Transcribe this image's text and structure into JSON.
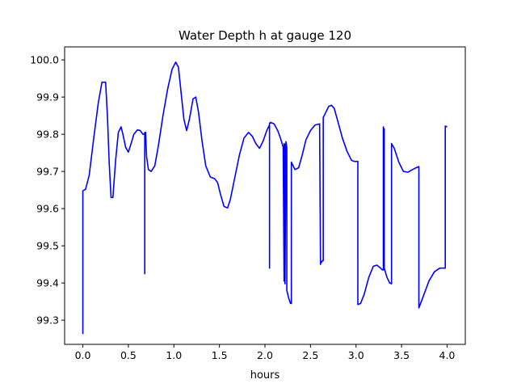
{
  "chart_data": {
    "type": "line",
    "title": "Water Depth h at gauge 120",
    "xlabel": "hours",
    "ylabel": "",
    "xlim": [
      -0.2,
      4.2
    ],
    "ylim": [
      99.235,
      100.035
    ],
    "x_ticks": [
      0.0,
      0.5,
      1.0,
      1.5,
      2.0,
      2.5,
      3.0,
      3.5,
      4.0
    ],
    "x_tick_labels": [
      "0.0",
      "0.5",
      "1.0",
      "1.5",
      "2.0",
      "2.5",
      "3.0",
      "3.5",
      "4.0"
    ],
    "y_ticks": [
      99.3,
      99.4,
      99.5,
      99.6,
      99.7,
      99.8,
      99.9,
      100.0
    ],
    "y_tick_labels": [
      "99.3",
      "99.4",
      "99.5",
      "99.6",
      "99.7",
      "99.8",
      "99.9",
      "100.0"
    ],
    "grid": false,
    "series": [
      {
        "color": "#0000ff",
        "x": [
          0.0,
          0.0,
          0.03,
          0.07,
          0.12,
          0.17,
          0.21,
          0.25,
          0.27,
          0.29,
          0.31,
          0.33,
          0.36,
          0.39,
          0.42,
          0.44,
          0.47,
          0.5,
          0.53,
          0.56,
          0.6,
          0.63,
          0.66,
          0.68,
          0.68,
          0.68,
          0.69,
          0.69,
          0.7,
          0.72,
          0.75,
          0.79,
          0.83,
          0.88,
          0.93,
          0.98,
          1.02,
          1.05,
          1.08,
          1.11,
          1.14,
          1.17,
          1.21,
          1.24,
          1.27,
          1.31,
          1.35,
          1.4,
          1.45,
          1.48,
          1.51,
          1.55,
          1.59,
          1.62,
          1.67,
          1.72,
          1.77,
          1.82,
          1.86,
          1.9,
          1.94,
          1.98,
          2.02,
          2.05,
          2.05,
          2.05,
          2.06,
          2.06,
          2.1,
          2.14,
          2.17,
          2.2,
          2.21,
          2.21,
          2.22,
          2.22,
          2.23,
          2.24,
          2.24,
          2.26,
          2.28,
          2.29,
          2.29,
          2.33,
          2.37,
          2.41,
          2.45,
          2.5,
          2.55,
          2.6,
          2.61,
          2.61,
          2.62,
          2.63,
          2.64,
          2.64,
          2.66,
          2.7,
          2.73,
          2.76,
          2.8,
          2.85,
          2.9,
          2.95,
          2.98,
          3.02,
          3.02,
          3.05,
          3.09,
          3.14,
          3.19,
          3.23,
          3.27,
          3.29,
          3.3,
          3.3,
          3.3,
          3.31,
          3.31,
          3.34,
          3.37,
          3.39,
          3.39,
          3.42,
          3.47,
          3.52,
          3.57,
          3.62,
          3.66,
          3.69,
          3.69,
          3.69,
          3.74,
          3.8,
          3.86,
          3.92,
          3.98,
          3.98,
          3.98,
          4.0
        ],
        "y": [
          99.263,
          99.648,
          99.652,
          99.69,
          99.79,
          99.885,
          99.94,
          99.94,
          99.85,
          99.72,
          99.63,
          99.63,
          99.73,
          99.805,
          99.82,
          99.8,
          99.765,
          99.752,
          99.775,
          99.8,
          99.812,
          99.81,
          99.8,
          99.8,
          99.425,
          99.805,
          99.805,
          99.8,
          99.74,
          99.705,
          99.7,
          99.715,
          99.77,
          99.85,
          99.92,
          99.975,
          99.994,
          99.98,
          99.91,
          99.84,
          99.81,
          99.84,
          99.895,
          99.9,
          99.86,
          99.78,
          99.715,
          99.685,
          99.68,
          99.67,
          99.64,
          99.606,
          99.602,
          99.625,
          99.685,
          99.745,
          99.79,
          99.805,
          99.795,
          99.775,
          99.762,
          99.782,
          99.81,
          99.825,
          99.44,
          99.83,
          99.83,
          99.832,
          99.828,
          99.81,
          99.79,
          99.765,
          99.405,
          99.775,
          99.77,
          99.398,
          99.78,
          99.765,
          99.38,
          99.36,
          99.345,
          99.345,
          99.725,
          99.705,
          99.71,
          99.745,
          99.785,
          99.81,
          99.825,
          99.828,
          99.45,
          99.455,
          99.455,
          99.46,
          99.46,
          99.845,
          99.855,
          99.875,
          99.878,
          99.87,
          99.835,
          99.79,
          99.755,
          99.73,
          99.727,
          99.727,
          99.342,
          99.345,
          99.37,
          99.415,
          99.445,
          99.448,
          99.44,
          99.435,
          99.435,
          99.82,
          99.815,
          99.815,
          99.44,
          99.415,
          99.4,
          99.398,
          99.775,
          99.762,
          99.725,
          99.7,
          99.698,
          99.705,
          99.71,
          99.713,
          99.333,
          99.333,
          99.365,
          99.405,
          99.43,
          99.44,
          99.44,
          99.44,
          99.822,
          99.82
        ]
      }
    ]
  }
}
